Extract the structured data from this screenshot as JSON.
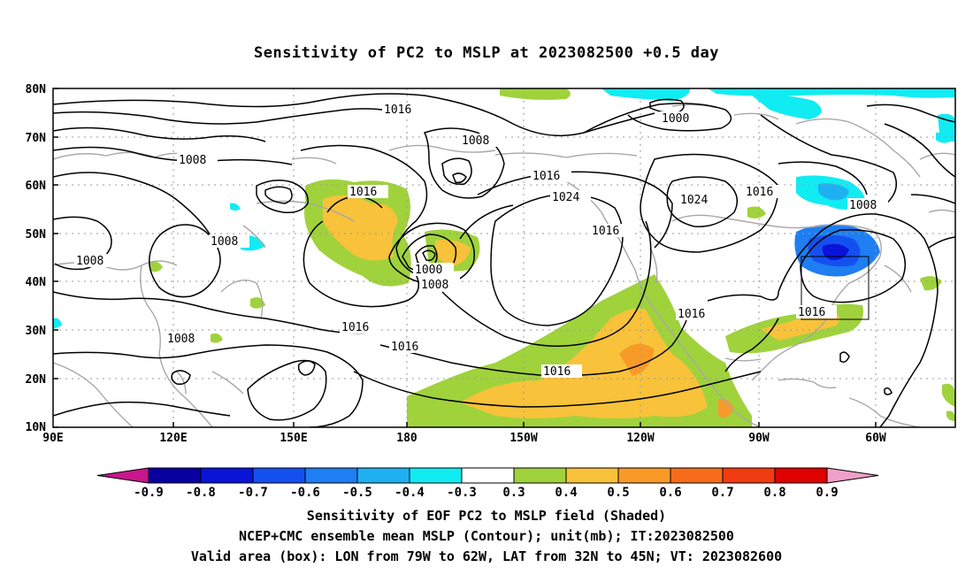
{
  "title": "Sensitivity of PC2 to MSLP at 2023082500 +0.5 day",
  "lat_labels": [
    "80N",
    "70N",
    "60N",
    "50N",
    "40N",
    "30N",
    "20N",
    "10N"
  ],
  "lon_labels": [
    "90E",
    "120E",
    "150E",
    "180",
    "150W",
    "120W",
    "90W",
    "60W"
  ],
  "contour_labels": [
    "1016",
    "1008",
    "1016",
    "1016",
    "1000",
    "1008",
    "1016",
    "1024",
    "1016",
    "1024",
    "1016",
    "1008",
    "1008",
    "1000",
    "1008",
    "1016",
    "1016",
    "1016",
    "1016",
    "1008"
  ],
  "colorbar": {
    "labels": [
      "-0.9",
      "-0.8",
      "-0.7",
      "-0.6",
      "-0.5",
      "-0.4",
      "-0.3",
      "0.3",
      "0.4",
      "0.5",
      "0.6",
      "0.7",
      "0.8",
      "0.9"
    ],
    "colors": [
      "#0a00a0",
      "#0a14d8",
      "#1450f0",
      "#1e7ef2",
      "#1fb0f2",
      "#10ecf2",
      "#ffffff",
      "#a0d23c",
      "#f8c23a",
      "#f89a28",
      "#f66c1c",
      "#f03c10",
      "#e00000"
    ],
    "low_end_color": "#c8168c",
    "high_end_color": "#f0a0c8"
  },
  "footer": {
    "line1": "Sensitivity of EOF PC2 to MSLP field (Shaded)",
    "line2": "NCEP+CMC ensemble mean MSLP (Contour); unit(mb); IT:2023082500",
    "line3": "Valid area (box): LON from 79W to 62W, LAT from 32N to 45N; VT: 2023082600"
  }
}
